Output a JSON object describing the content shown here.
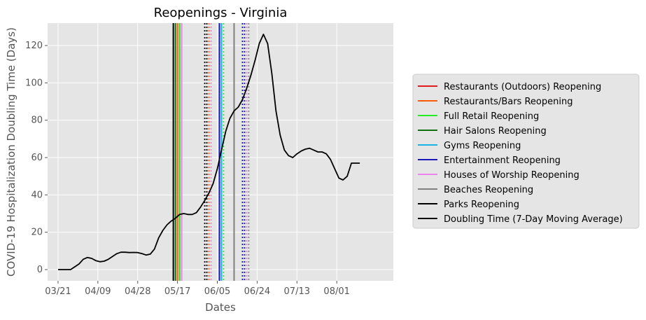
{
  "chart_data": {
    "type": "line",
    "title": "Reopenings - Virginia",
    "xlabel": "Dates",
    "ylabel": "COVID-19 Hospitalization Doubling Time (Days)",
    "x_start_date": "2020-03-21",
    "x_tick_labels": [
      "03/21",
      "04/09",
      "04/28",
      "05/17",
      "06/05",
      "06/24",
      "07/13",
      "08/01"
    ],
    "y_ticks": [
      0,
      20,
      40,
      60,
      80,
      100,
      120
    ],
    "ylim": [
      -6,
      132
    ],
    "grid": true,
    "legend_position": "right",
    "series": [
      {
        "name": "Doubling Time (7-Day Moving Average)",
        "color": "#000000",
        "x": [
          "03/21",
          "03/27",
          "03/29",
          "03/31",
          "04/02",
          "04/04",
          "04/06",
          "04/08",
          "04/10",
          "04/12",
          "04/14",
          "04/16",
          "04/18",
          "04/20",
          "04/22",
          "04/24",
          "04/26",
          "04/28",
          "04/30",
          "05/02",
          "05/04",
          "05/06",
          "05/08",
          "05/10",
          "05/12",
          "05/14",
          "05/16",
          "05/18",
          "05/20",
          "05/22",
          "05/24",
          "05/26",
          "05/28",
          "05/30",
          "06/01",
          "06/03",
          "06/05",
          "06/07",
          "06/09",
          "06/11",
          "06/13",
          "06/15",
          "06/17",
          "06/19",
          "06/21",
          "06/23",
          "06/25",
          "06/27",
          "06/29",
          "07/01",
          "07/03",
          "07/05",
          "07/07",
          "07/09",
          "07/11",
          "07/13",
          "07/15",
          "07/17",
          "07/19",
          "07/21",
          "07/23",
          "07/25",
          "07/27",
          "07/29",
          "07/31",
          "08/02",
          "08/04",
          "08/06",
          "08/08",
          "08/10",
          "08/12"
        ],
        "y": [
          0,
          0,
          1.5,
          3,
          5.5,
          6.5,
          6,
          4.8,
          4.2,
          4.5,
          5.5,
          7,
          8.5,
          9.3,
          9.3,
          9.1,
          9.2,
          9.1,
          8.6,
          7.8,
          8.3,
          11,
          17,
          21,
          24,
          26,
          27.5,
          29.5,
          30,
          29.5,
          29.5,
          30.5,
          33.5,
          37,
          41,
          46,
          54,
          64,
          74,
          81,
          85,
          87,
          91,
          97,
          104,
          112,
          121,
          126,
          121,
          105,
          85,
          72,
          64,
          61,
          60,
          62,
          63.5,
          64.5,
          65,
          64,
          63,
          63,
          62,
          59,
          54,
          49,
          48,
          50,
          57,
          57,
          57
        ]
      }
    ],
    "vlines": [
      {
        "name": "Restaurants (Outdoors) Reopening",
        "color": "#e31a1c",
        "dates": [
          "05/18",
          "05/31",
          "06/07",
          "06/17"
        ]
      },
      {
        "name": "Restaurants/Bars Reopening",
        "color": "#ff5a0a",
        "dates": [
          "05/17",
          "06/01",
          "06/07",
          "06/18"
        ]
      },
      {
        "name": "Full Retail Reopening",
        "color": "#22ee22",
        "dates": [
          "05/18",
          "06/02",
          "06/08",
          "06/19"
        ]
      },
      {
        "name": "Hair Salons Reopening",
        "color": "#107010",
        "dates": [
          "05/16",
          "05/30",
          "06/06",
          "06/17"
        ]
      },
      {
        "name": "Gyms Reopening",
        "color": "#1ab2e6",
        "dates": [
          "06/07",
          "06/19"
        ]
      },
      {
        "name": "Entertainment Reopening",
        "color": "#1a1ab8",
        "dates": [
          "06/06",
          "06/17",
          "06/18"
        ]
      },
      {
        "name": "Houses of Worship Reopening",
        "color": "#ee82ee",
        "dates": [
          "05/19",
          "06/02",
          "06/19"
        ]
      },
      {
        "name": "Beaches Reopening",
        "color": "#808080",
        "dates": [
          "06/13",
          "06/20"
        ]
      },
      {
        "name": "Parks Reopening",
        "color": "#000000",
        "dates": [
          "05/15",
          "05/30",
          "05/31"
        ]
      }
    ]
  }
}
